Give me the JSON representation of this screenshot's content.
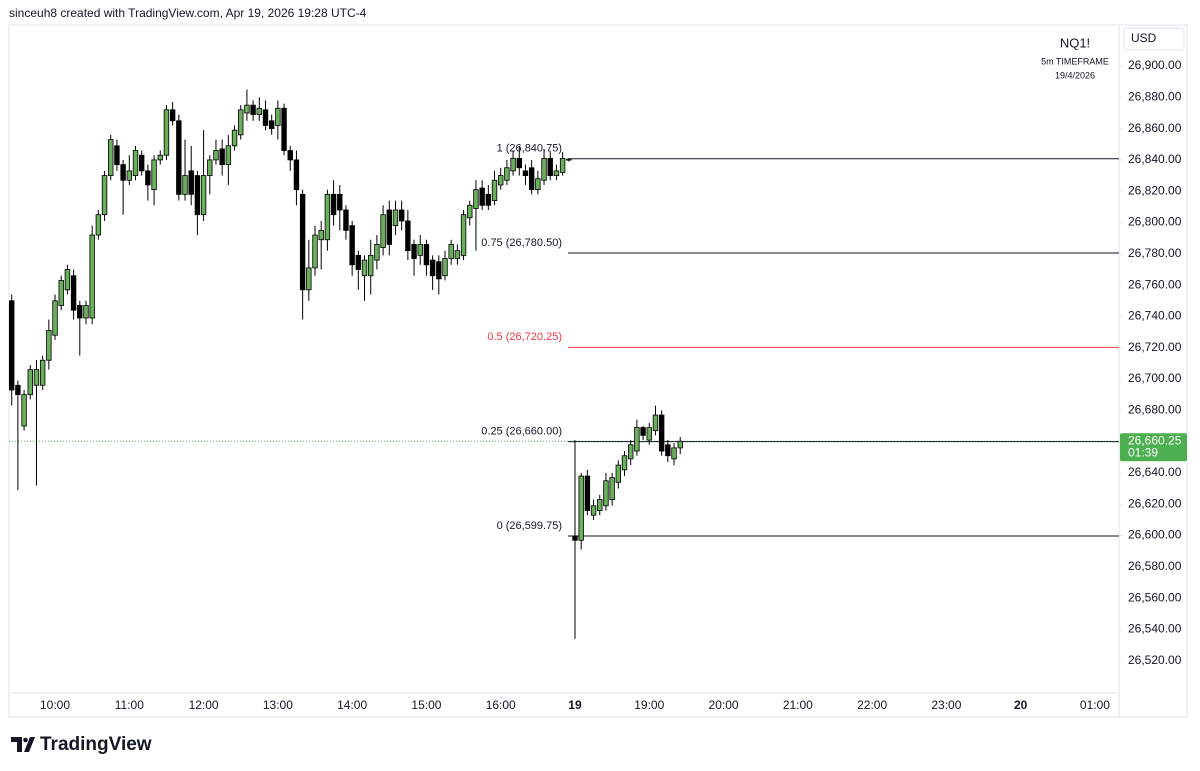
{
  "attribution": "sinceuh8 created with TradingView.com, Apr 19, 2026 19:28 UTC-4",
  "footer": "TradingView",
  "chart_data": {
    "type": "candlestick",
    "title": "NQ1!",
    "subtitle": "5m TIMEFRAME",
    "date": "19/4/2026",
    "currency": "USD",
    "up_color": "#6aaf5c",
    "down_color": "#000000",
    "grid": false,
    "ylim": [
      26499.4,
      26926.2
    ],
    "yticks": [
      {
        "value": 26520,
        "label": "26,520.00"
      },
      {
        "value": 26540,
        "label": "26,540.00"
      },
      {
        "value": 26560,
        "label": "26,560.00"
      },
      {
        "value": 26580,
        "label": "26,580.00"
      },
      {
        "value": 26600,
        "label": "26,600.00"
      },
      {
        "value": 26620,
        "label": "26,620.00"
      },
      {
        "value": 26640,
        "label": "26,640.00"
      },
      {
        "value": 26660,
        "label": "26,660.00"
      },
      {
        "value": 26680,
        "label": "26,680.00"
      },
      {
        "value": 26700,
        "label": "26,700.00"
      },
      {
        "value": 26720,
        "label": "26,720.00"
      },
      {
        "value": 26740,
        "label": "26,740.00"
      },
      {
        "value": 26760,
        "label": "26,760.00"
      },
      {
        "value": 26780,
        "label": "26,780.00"
      },
      {
        "value": 26800,
        "label": "26,800.00"
      },
      {
        "value": 26820,
        "label": "26,820.00"
      },
      {
        "value": 26840,
        "label": "26,840.00"
      },
      {
        "value": 26860,
        "label": "26,860.00"
      },
      {
        "value": 26880,
        "label": "26,880.00"
      },
      {
        "value": 26900,
        "label": "26,900.00"
      }
    ],
    "categories": [
      null,
      null,
      null,
      null,
      null,
      null,
      null,
      "10:00",
      null,
      null,
      null,
      null,
      null,
      null,
      null,
      null,
      null,
      null,
      null,
      "11:00",
      null,
      null,
      null,
      null,
      null,
      null,
      null,
      null,
      null,
      null,
      null,
      "12:00",
      null,
      null,
      null,
      null,
      null,
      null,
      null,
      null,
      null,
      null,
      null,
      "13:00",
      null,
      null,
      null,
      null,
      null,
      null,
      null,
      null,
      null,
      null,
      null,
      "14:00",
      null,
      null,
      null,
      null,
      null,
      null,
      null,
      null,
      null,
      null,
      null,
      "15:00",
      null,
      null,
      null,
      null,
      null,
      null,
      null,
      null,
      null,
      null,
      null,
      "16:00",
      null,
      null,
      null,
      null,
      null,
      null,
      null,
      null,
      null,
      null,
      null,
      "19",
      null,
      null,
      null,
      null,
      null,
      null,
      null,
      null,
      null,
      null,
      null,
      "19:00",
      null,
      null,
      null,
      null,
      null,
      null,
      null,
      null,
      null,
      null,
      null,
      "20:00",
      null,
      null,
      null,
      null,
      null,
      null,
      null,
      null,
      null,
      null,
      null,
      "21:00",
      null,
      null,
      null,
      null,
      null,
      null,
      null,
      null,
      null,
      null,
      null,
      "22:00",
      null,
      null,
      null,
      null,
      null,
      null,
      null,
      null,
      null,
      null,
      null,
      "23:00",
      null,
      null,
      null,
      null,
      null,
      null,
      null,
      null,
      null,
      null,
      null,
      "20",
      null,
      null,
      null,
      null,
      null,
      null,
      null,
      null,
      null,
      null,
      null,
      "01:00"
    ],
    "open": [
      26750,
      26696,
      26670,
      26690,
      26696,
      26696,
      26712,
      26728,
      26747,
      26757,
      26766,
      26747,
      26739,
      26739,
      26792,
      26805,
      26830,
      26849,
      26837,
      26827,
      26830,
      26843,
      26833,
      26821,
      26840,
      26843,
      26872,
      26865,
      26818,
      26833,
      26830,
      26805,
      26830,
      26840,
      26847,
      26837,
      26849,
      26856,
      26870,
      26875,
      26869,
      26872,
      26865,
      26862,
      26873,
      26846,
      26840,
      26818,
      26757,
      26771,
      26789,
      26789,
      26818,
      26818,
      26808,
      26798,
      26779,
      26766,
      26766,
      26776,
      26784,
      26808,
      26798,
      26808,
      26801,
      26786,
      26779,
      26786,
      26776,
      26775,
      26766,
      26777,
      26777,
      26779,
      26803,
      26809,
      26822,
      26818,
      26814,
      26824,
      26827,
      26833,
      26841,
      26833,
      26835,
      26821,
      26827,
      26841,
      26830,
      26832,
      26840,
      26599.75,
      26597,
      26638,
      26613,
      26616,
      26619,
      26623,
      26634,
      26642,
      26649,
      26654,
      26669,
      26661,
      26667,
      26677,
      26658,
      26649,
      26656,
      null,
      null,
      null,
      null,
      null,
      null,
      null,
      null,
      null,
      null,
      null,
      null,
      null,
      null,
      null,
      null,
      null,
      null,
      null,
      null,
      null,
      null,
      null,
      null,
      null,
      null,
      null,
      null,
      null,
      null,
      null,
      null,
      null,
      null,
      null,
      null,
      null,
      null,
      null,
      null,
      null,
      null,
      null,
      null,
      null,
      null,
      null,
      null,
      null,
      null,
      null,
      null,
      null,
      null,
      null,
      null,
      null,
      null,
      null,
      null,
      null,
      null,
      null,
      null,
      null,
      null,
      null
    ],
    "high": [
      26754,
      26699,
      26693,
      26709,
      26712,
      26715,
      26738,
      26754,
      26766,
      26773,
      26770,
      26750,
      26750,
      26798,
      26808,
      26833,
      26856,
      26853,
      26840,
      26843,
      26849,
      26846,
      26837,
      26843,
      26846,
      26875,
      26877,
      26869,
      26853,
      26849,
      26833,
      26859,
      26843,
      26853,
      26853,
      26856,
      26862,
      26875,
      26885,
      26878,
      26880,
      26878,
      26869,
      26878,
      26876,
      26849,
      26846,
      26821,
      26789,
      26798,
      26801,
      26821,
      26827,
      26824,
      26811,
      26801,
      26782,
      26779,
      26789,
      26792,
      26811,
      26814,
      26814,
      26814,
      26808,
      26789,
      26792,
      26789,
      26779,
      26779,
      26782,
      26789,
      26786,
      26808,
      26814,
      26827,
      26827,
      26824,
      26833,
      26835,
      26840,
      26846,
      26849,
      26837,
      26840,
      26833,
      26847,
      26846,
      26837,
      26845,
      26840.75,
      26661,
      26640,
      26642,
      26623,
      26626,
      26640,
      26640,
      26648,
      26654,
      26661,
      26674,
      26670,
      26672,
      26683,
      26680,
      26661,
      26659,
      26663,
      null,
      null,
      null,
      null,
      null,
      null,
      null,
      null,
      null,
      null,
      null,
      null,
      null,
      null,
      null,
      null,
      null,
      null,
      null,
      null,
      null,
      null,
      null,
      null,
      null,
      null,
      null,
      null,
      null,
      null,
      null,
      null,
      null,
      null,
      null,
      null,
      null,
      null,
      null,
      null,
      null,
      null,
      null,
      null,
      null,
      null,
      null,
      null,
      null,
      null,
      null,
      null,
      null,
      null,
      null,
      null,
      null,
      null,
      null,
      null,
      null,
      null,
      null,
      null,
      null,
      null,
      null
    ],
    "low": [
      26683,
      26629,
      26667,
      26687,
      26632,
      26693,
      26706,
      26725,
      26744,
      26754,
      26738,
      26715,
      26735,
      26735,
      26789,
      26801,
      26827,
      26833,
      26805,
      26824,
      26827,
      26830,
      26814,
      26811,
      26837,
      26840,
      26862,
      26814,
      26814,
      26811,
      26792,
      26801,
      26818,
      26837,
      26830,
      26824,
      26846,
      26853,
      26865,
      26865,
      26865,
      26859,
      26856,
      26853,
      26843,
      26833,
      26811,
      26738,
      26750,
      26766,
      26770,
      26782,
      26798,
      26795,
      26789,
      26766,
      26757,
      26750,
      26754,
      26770,
      26779,
      26779,
      26792,
      26795,
      26776,
      26766,
      26773,
      26766,
      26757,
      26754,
      26763,
      26773,
      26773,
      26776,
      26798,
      26782,
      26808,
      26808,
      26811,
      26821,
      26824,
      26830,
      26830,
      26824,
      26818,
      26818,
      26824,
      26827,
      26827,
      26830,
      26839,
      26534,
      26591,
      26613,
      26610,
      26613,
      26616,
      26619,
      26630,
      26638,
      26645,
      26651,
      26661,
      26658,
      26664,
      26651,
      26647,
      26645,
      26652,
      null,
      null,
      null,
      null,
      null,
      null,
      null,
      null,
      null,
      null,
      null,
      null,
      null,
      null,
      null,
      null,
      null,
      null,
      null,
      null,
      null,
      null,
      null,
      null,
      null,
      null,
      null,
      null,
      null,
      null,
      null,
      null,
      null,
      null,
      null,
      null,
      null,
      null,
      null,
      null,
      null,
      null,
      null,
      null,
      null,
      null,
      null,
      null,
      null,
      null,
      null,
      null,
      null,
      null,
      null,
      null,
      null,
      null,
      null,
      null,
      null,
      null,
      null,
      null,
      null,
      null,
      null
    ],
    "close": [
      26693,
      26690,
      26690,
      26706,
      26706,
      26712,
      26731,
      26750,
      26763,
      26770,
      26744,
      26739,
      26747,
      26792,
      26805,
      26830,
      26853,
      26837,
      26827,
      26833,
      26846,
      26833,
      26824,
      26840,
      26843,
      26872,
      26865,
      26818,
      26830,
      26818,
      26805,
      26830,
      26840,
      26846,
      26837,
      26849,
      26859,
      26872,
      26875,
      26869,
      26873,
      26862,
      26860,
      26873,
      26846,
      26840,
      26821,
      26757,
      26771,
      26792,
      26795,
      26818,
      26805,
      26808,
      26795,
      26773,
      26770,
      26776,
      26779,
      26786,
      26805,
      26786,
      26808,
      26801,
      26782,
      26777,
      26786,
      26773,
      26766,
      26764,
      26777,
      26786,
      26782,
      26805,
      26811,
      26821,
      26811,
      26811,
      26827,
      26830,
      26835,
      26841,
      26835,
      26830,
      26821,
      26828,
      26841,
      26830,
      26833,
      26841,
      26840.5,
      26597,
      26638,
      26616,
      26619,
      26623,
      26635,
      26637,
      26645,
      26651,
      26658,
      26669,
      26664,
      26669,
      26677,
      26654,
      26651,
      26656,
      26660.25,
      null,
      null,
      null,
      null,
      null,
      null,
      null,
      null,
      null,
      null,
      null,
      null,
      null,
      null,
      null,
      null,
      null,
      null,
      null,
      null,
      null,
      null,
      null,
      null,
      null,
      null,
      null,
      null,
      null,
      null,
      null,
      null,
      null,
      null,
      null,
      null,
      null,
      null,
      null,
      null,
      null,
      null,
      null,
      null,
      null,
      null,
      null,
      null,
      null,
      null,
      null,
      null,
      null,
      null,
      null,
      null,
      null,
      null,
      null,
      null,
      null,
      null,
      null,
      null,
      null,
      null,
      null
    ],
    "fib_levels": [
      {
        "label": "1 (26,840.75)",
        "value": 26840.75,
        "color": "#131722"
      },
      {
        "label": "0.75 (26,780.50)",
        "value": 26780.5,
        "color": "#131722"
      },
      {
        "label": "0.5 (26,720.25)",
        "value": 26720.25,
        "color": "#f23645"
      },
      {
        "label": "0.25 (26,660.00)",
        "value": 26660,
        "color": "#131722"
      },
      {
        "label": "0 (26,599.75)",
        "value": 26599.75,
        "color": "#131722"
      }
    ],
    "last_price": {
      "value": 26660.25,
      "label": "26,660.25",
      "countdown": "01:39",
      "color": "#4caf50"
    }
  }
}
